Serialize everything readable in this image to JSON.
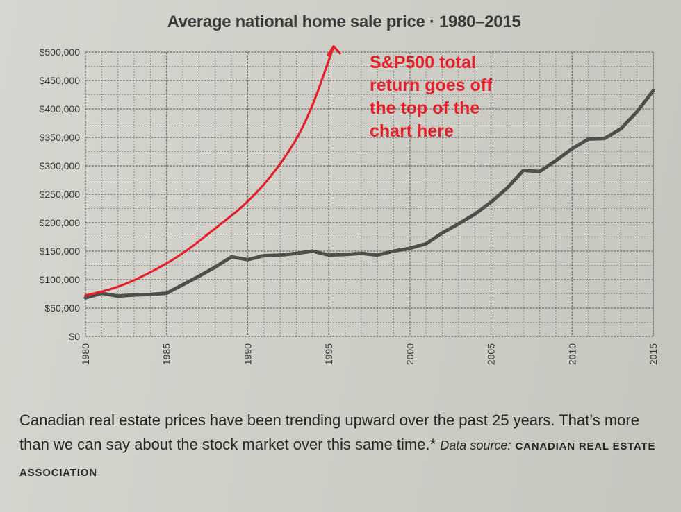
{
  "chart_data": {
    "type": "line",
    "title": "Average national home sale price · 1980–2015",
    "xlabel": "",
    "ylabel": "",
    "xlim": [
      1980,
      2015
    ],
    "ylim": [
      0,
      500000
    ],
    "grid": true,
    "x_ticks": [
      "1980",
      "1985",
      "1990",
      "1995",
      "2000",
      "2005",
      "2010",
      "2015"
    ],
    "y_ticks": [
      "$500,000",
      "$450,000",
      "$400,000",
      "$350,000",
      "$300,000",
      "$250,000",
      "$200,000",
      "$150,000",
      "$100,000",
      "$50,000",
      "$0"
    ],
    "series": [
      {
        "name": "",
        "color": "#4e4e4a",
        "x": [
          1980,
          1981,
          1982,
          1983,
          1984,
          1985,
          1986,
          1987,
          1988,
          1989,
          1990,
          1991,
          1992,
          1993,
          1994,
          1995,
          1996,
          1997,
          1998,
          1999,
          2000,
          2001,
          2002,
          2003,
          2004,
          2005,
          2006,
          2007,
          2008,
          2009,
          2010,
          2011,
          2012,
          2013,
          2014,
          2015
        ],
        "y": [
          68000,
          76000,
          71000,
          73000,
          74000,
          76000,
          91000,
          106000,
          122000,
          140000,
          135000,
          142000,
          143000,
          146000,
          150000,
          143000,
          144000,
          146000,
          143000,
          150000,
          155000,
          163000,
          182000,
          198000,
          215000,
          236000,
          261000,
          292000,
          290000,
          309000,
          330000,
          347000,
          348000,
          365000,
          395000,
          432000
        ]
      }
    ],
    "annotations": [
      {
        "text_lines": [
          "S&P500 total",
          "return goes off",
          "the top of the",
          "chart here"
        ],
        "color": "#e5202a",
        "arrow_path": [
          [
            1980,
            72000
          ],
          [
            1982,
            86000
          ],
          [
            1984,
            112000
          ],
          [
            1986,
            145000
          ],
          [
            1988,
            190000
          ],
          [
            1990,
            235000
          ],
          [
            1992,
            300000
          ],
          [
            1993.7,
            380000
          ],
          [
            1995.3,
            510000
          ]
        ]
      }
    ]
  },
  "caption": {
    "text": "Canadian real estate prices have been trending upward over the past 25 years. That’s more than we can say about the stock market over this same time.*",
    "source_label": "Data source:",
    "source_org": "CANADIAN REAL ESTATE ASSOCIATION"
  }
}
